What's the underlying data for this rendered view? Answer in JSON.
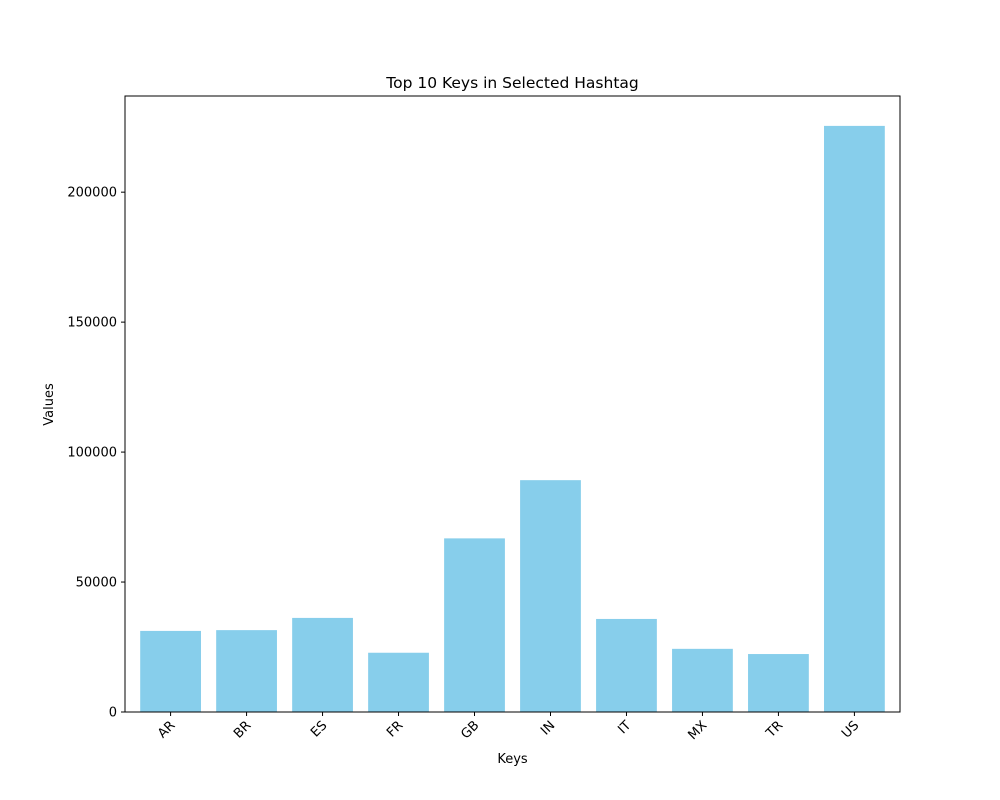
{
  "chart_data": {
    "type": "bar",
    "title": "Top 10 Keys in Selected Hashtag",
    "xlabel": "Keys",
    "ylabel": "Values",
    "categories": [
      "AR",
      "BR",
      "ES",
      "FR",
      "GB",
      "IN",
      "IT",
      "MX",
      "TR",
      "US"
    ],
    "values": [
      31200,
      31500,
      36200,
      22800,
      66800,
      89200,
      35800,
      24300,
      22300,
      225500
    ],
    "ylim": [
      0,
      237000
    ],
    "yticks": [
      0,
      50000,
      100000,
      150000,
      200000
    ],
    "ytick_labels": [
      "0",
      "50000",
      "100000",
      "150000",
      "200000"
    ],
    "bar_color": "#87ceeb",
    "grid": false,
    "legend": "none",
    "xtick_rotation_deg": 45
  }
}
